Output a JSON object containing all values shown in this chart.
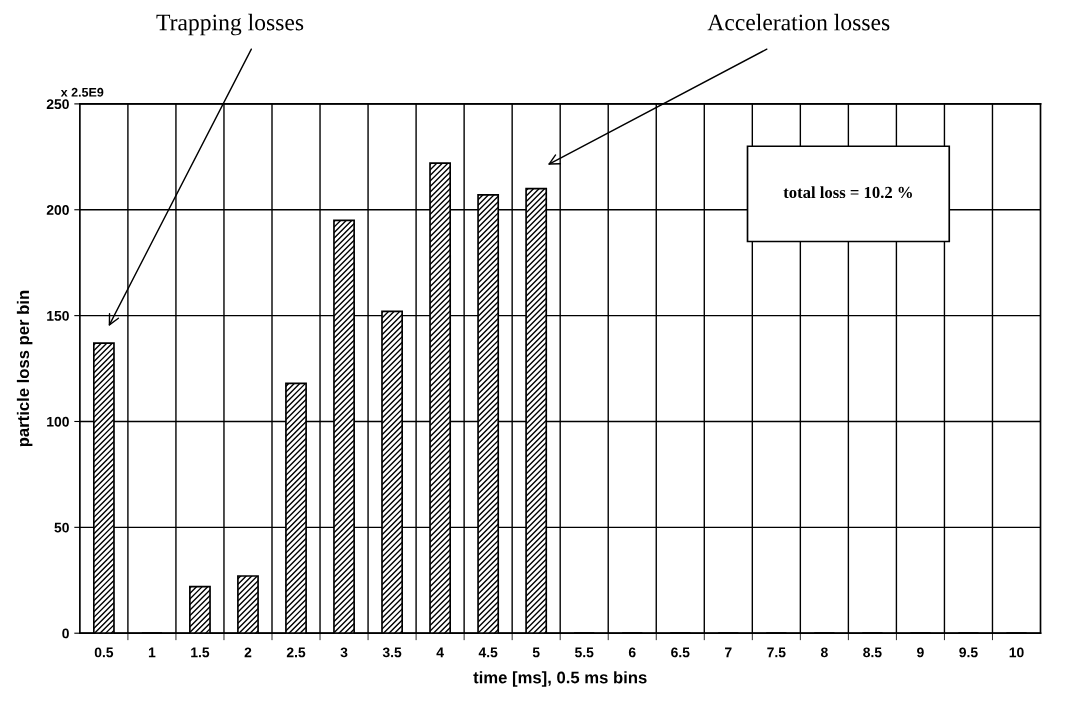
{
  "chart_data": {
    "type": "bar",
    "xlabel": "time [ms], 0.5 ms bins",
    "ylabel": "particle loss per bin",
    "categories": [
      "0.5",
      "1",
      "1.5",
      "2",
      "2.5",
      "3",
      "3.5",
      "4",
      "4.5",
      "5",
      "5.5",
      "6",
      "6.5",
      "7",
      "7.5",
      "8",
      "8.5",
      "9",
      "9.5",
      "10"
    ],
    "values": [
      137,
      0,
      22,
      27,
      118,
      195,
      152,
      222,
      207,
      210,
      0,
      0,
      0,
      0,
      0,
      0,
      0,
      0,
      0,
      0
    ],
    "color": "#000000",
    "ylim": [
      0,
      250
    ],
    "yticks": [
      0,
      50,
      100,
      150,
      200,
      250
    ],
    "grid": true,
    "annotations": [
      "Trapping losses",
      "Acceleration losses",
      "x 2.5E9",
      "total loss = 10.2 %"
    ]
  }
}
